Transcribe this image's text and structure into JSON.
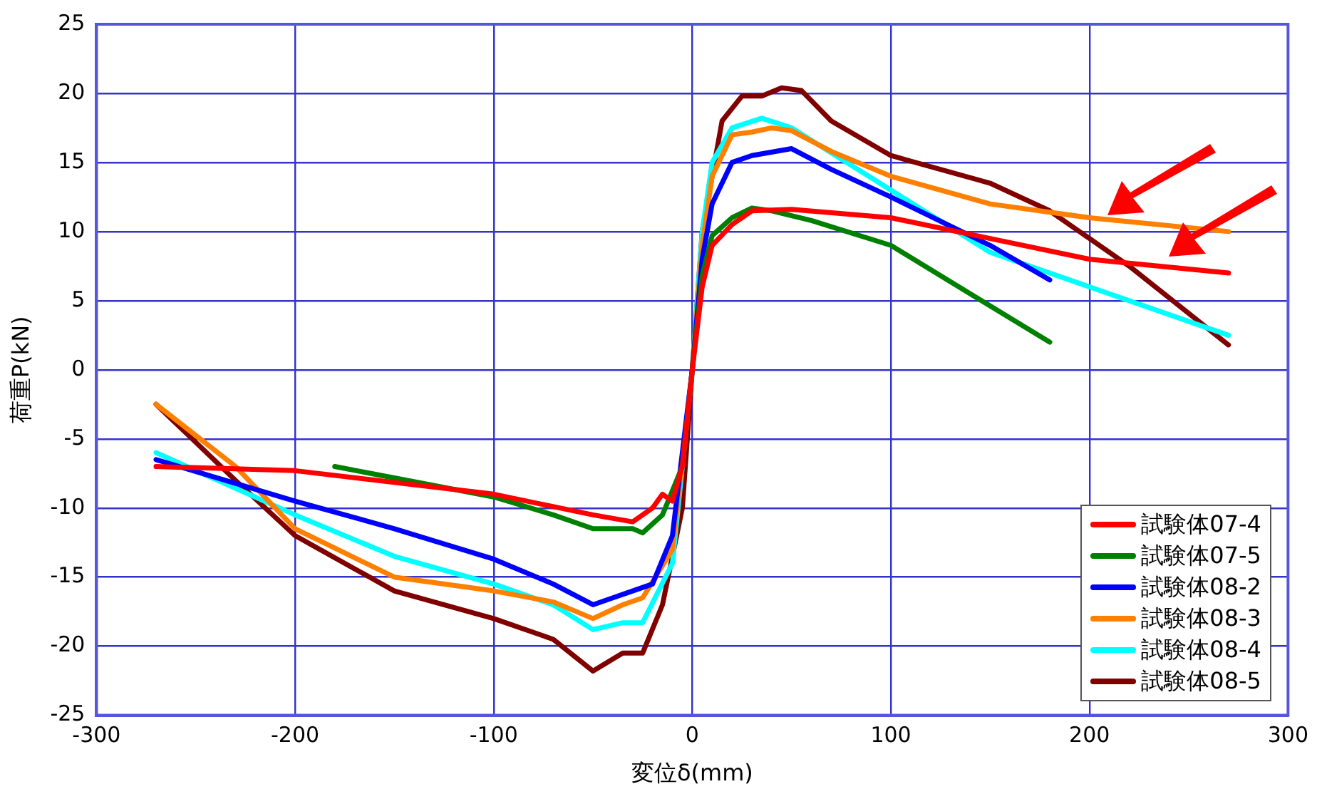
{
  "chart_data": {
    "type": "line",
    "xlabel": "変位δ(mm)",
    "ylabel": "荷重P(kN)",
    "xlim": [
      -300,
      300
    ],
    "xticks": [
      -300,
      -200,
      -100,
      0,
      100,
      200,
      300
    ],
    "ylim": [
      -25,
      25
    ],
    "yticks": [
      -25,
      -20,
      -15,
      -10,
      -5,
      0,
      5,
      10,
      15,
      20,
      25
    ],
    "grid": true,
    "legend": "bottom right",
    "marker": "none",
    "line_style": "solid",
    "series": [
      {
        "name": "試験体07-4",
        "color": "#ff0000",
        "x": [
          -270,
          -200,
          -100,
          -50,
          -30,
          -20,
          -15,
          -10,
          -5,
          0,
          5,
          10,
          20,
          30,
          50,
          100,
          150,
          200,
          270
        ],
        "values": [
          -7,
          -7.3,
          -9,
          -10.5,
          -11,
          -10,
          -9,
          -9.5,
          -7,
          0,
          6,
          9,
          10.5,
          11.5,
          11.6,
          11,
          9.5,
          8,
          7
        ]
      },
      {
        "name": "試験体07-5",
        "color": "#008000",
        "x": [
          -180,
          -100,
          -70,
          -50,
          -30,
          -25,
          -15,
          -5,
          0,
          5,
          10,
          20,
          30,
          40,
          60,
          100,
          140,
          180
        ],
        "values": [
          -7,
          -9.2,
          -10.5,
          -11.5,
          -11.5,
          -11.8,
          -10.5,
          -7,
          0,
          6.8,
          9.7,
          11,
          11.7,
          11.5,
          10.8,
          9,
          5.5,
          2
        ]
      },
      {
        "name": "試験体08-2",
        "color": "#0000ff",
        "x": [
          -270,
          -200,
          -150,
          -100,
          -70,
          -50,
          -40,
          -30,
          -20,
          -10,
          0,
          5,
          10,
          20,
          30,
          50,
          70,
          100,
          150,
          180
        ],
        "values": [
          -6.5,
          -9.5,
          -11.5,
          -13.7,
          -15.5,
          -17,
          -16.5,
          -16,
          -15.5,
          -12,
          0,
          8,
          12,
          15,
          15.5,
          16,
          14.5,
          12.5,
          9,
          6.5
        ]
      },
      {
        "name": "試験体08-3",
        "color": "#ff7f00",
        "x": [
          -270,
          -230,
          -200,
          -150,
          -100,
          -70,
          -50,
          -35,
          -25,
          -10,
          0,
          5,
          10,
          20,
          30,
          40,
          50,
          70,
          100,
          150,
          200,
          270
        ],
        "values": [
          -2.5,
          -7,
          -11.5,
          -15,
          -16,
          -16.8,
          -18,
          -17,
          -16.5,
          -13,
          0,
          9,
          14,
          17,
          17.2,
          17.5,
          17.3,
          15.8,
          14,
          12,
          11,
          10
        ]
      },
      {
        "name": "試験体08-4",
        "color": "#00ffff",
        "x": [
          -270,
          -200,
          -150,
          -100,
          -70,
          -50,
          -35,
          -25,
          -10,
          0,
          5,
          10,
          20,
          35,
          50,
          100,
          150,
          200,
          270
        ],
        "values": [
          -6,
          -10.5,
          -13.5,
          -15.5,
          -17,
          -18.8,
          -18.3,
          -18.3,
          -14,
          0,
          10,
          15,
          17.5,
          18.2,
          17.5,
          13,
          8.5,
          6,
          2.5
        ]
      },
      {
        "name": "試験体08-5",
        "color": "#800000",
        "x": [
          -270,
          -230,
          -200,
          -150,
          -100,
          -70,
          -50,
          -35,
          -25,
          -15,
          -5,
          0,
          5,
          15,
          25,
          35,
          45,
          55,
          70,
          100,
          150,
          180,
          220,
          270
        ],
        "values": [
          -2.5,
          -8,
          -12,
          -16,
          -18,
          -19.5,
          -21.8,
          -20.5,
          -20.5,
          -17,
          -10,
          0,
          10,
          18,
          19.8,
          19.8,
          20.4,
          20.2,
          18,
          15.5,
          13.5,
          11.5,
          7.5,
          1.8
        ]
      }
    ]
  }
}
